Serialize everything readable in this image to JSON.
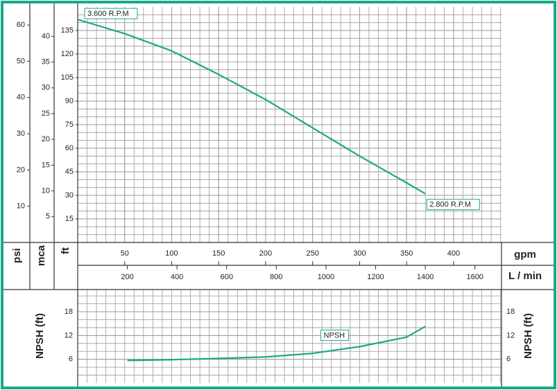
{
  "chart_data": [
    {
      "type": "line",
      "x_label": "gpm",
      "xlim": [
        0,
        451
      ],
      "xticks": [
        50,
        100,
        150,
        200,
        250,
        300,
        350,
        400
      ],
      "x2_label": "L / min",
      "x2lim": [
        0,
        1707
      ],
      "x2ticks": [
        200,
        400,
        600,
        800,
        1000,
        1200,
        1400,
        1600
      ],
      "y_label": "ft",
      "ylim": [
        0,
        150
      ],
      "yticks": [
        15,
        30,
        45,
        60,
        75,
        90,
        105,
        120,
        135
      ],
      "y2_label": "psi",
      "y2lim": [
        0,
        65
      ],
      "y2ticks": [
        10,
        20,
        30,
        40,
        50,
        60
      ],
      "y3_label": "mca",
      "y3lim": [
        0,
        45.7
      ],
      "y3ticks": [
        5,
        10,
        15,
        20,
        25,
        30,
        35,
        40
      ],
      "grid": true,
      "annotations": [
        "3.600 R.P.M",
        "2.800 R.P.M"
      ],
      "series": [
        {
          "color": "#1aa88a",
          "x": [
            0,
            50,
            100,
            150,
            200,
            250,
            300,
            350,
            370
          ],
          "values": [
            142,
            133,
            122,
            107,
            91,
            73,
            55,
            38,
            31
          ]
        }
      ]
    },
    {
      "type": "line",
      "xlim": [
        0,
        451
      ],
      "y_label": "NPSH (ft)",
      "ylim": [
        0,
        23.6
      ],
      "yticks": [
        6,
        12,
        18
      ],
      "grid": true,
      "series": [
        {
          "name": "NPSH",
          "color": "#1aa88a",
          "x": [
            53,
            100,
            150,
            200,
            250,
            300,
            350,
            370
          ],
          "values": [
            5.7,
            5.9,
            6.2,
            6.6,
            7.5,
            9.2,
            11.6,
            14.3
          ]
        }
      ]
    }
  ]
}
